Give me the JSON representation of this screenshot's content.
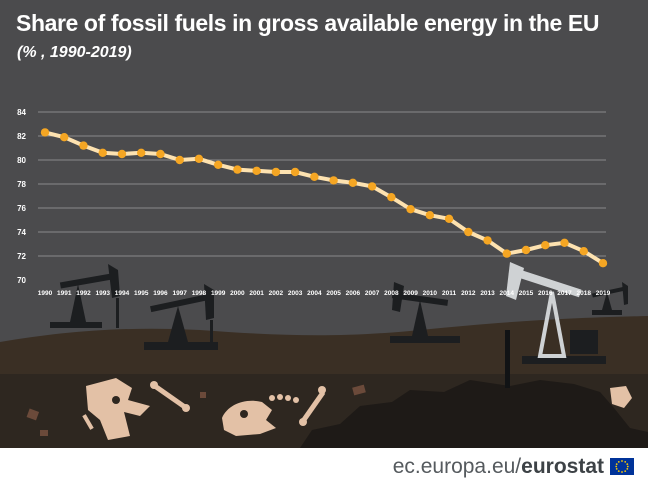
{
  "header": {
    "title": "Share of fossil fuels in gross available energy in the EU",
    "subtitle": "(% , 1990-2019)"
  },
  "footer": {
    "site": "ec.europa.eu/",
    "brand": "eurostat"
  },
  "colors": {
    "background": "#4b4b4d",
    "line": "#fde2b0",
    "marker": "#f5a623",
    "grid": "#8a8a8c",
    "ground_top": "#3a2f24",
    "ground_mid": "#2e2720",
    "ground_bottom": "#221d19",
    "fossil": "#e3c1a6",
    "rig": "#1f2326"
  },
  "icons": [
    "oil-pump-icon",
    "dinosaur-skull-icon",
    "fossil-bone-icon",
    "eu-flag-icon"
  ],
  "chart_data": {
    "type": "line",
    "title": "Share of fossil fuels in gross available energy in the EU",
    "subtitle": "(% , 1990-2019)",
    "xlabel": "",
    "ylabel": "",
    "ylim": [
      70,
      84
    ],
    "yticks": [
      70,
      72,
      74,
      76,
      78,
      80,
      82,
      84
    ],
    "grid": true,
    "categories": [
      "1990",
      "1991",
      "1992",
      "1993",
      "1994",
      "1995",
      "1996",
      "1997",
      "1998",
      "1999",
      "2000",
      "2001",
      "2002",
      "2003",
      "2004",
      "2005",
      "2006",
      "2007",
      "2008",
      "2009",
      "2010",
      "2011",
      "2012",
      "2013",
      "2014",
      "2015",
      "2016",
      "2017",
      "2018",
      "2019"
    ],
    "values": [
      82.3,
      81.9,
      81.2,
      80.6,
      80.5,
      80.6,
      80.5,
      80.0,
      80.1,
      79.6,
      79.2,
      79.1,
      79.0,
      79.0,
      78.6,
      78.3,
      78.1,
      77.8,
      76.9,
      75.9,
      75.4,
      75.1,
      74.0,
      73.3,
      72.2,
      72.5,
      72.9,
      73.1,
      72.4,
      71.4
    ]
  }
}
